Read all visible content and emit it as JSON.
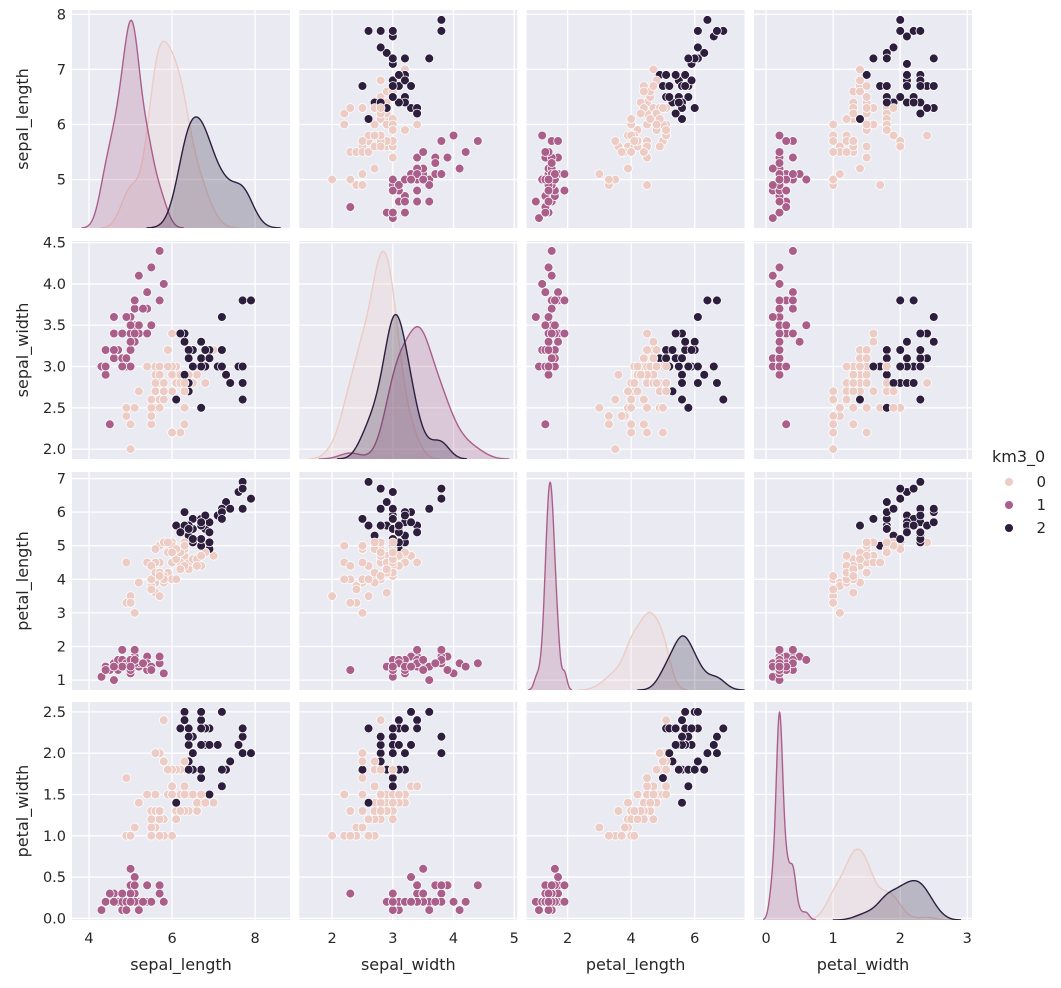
{
  "chart_data": {
    "type": "scatter",
    "kind": "pairplot",
    "diag_kind": "kde",
    "grid": true,
    "legend_placement": "right",
    "background": "#eaeaf2",
    "variables": [
      "sepal_length",
      "sepal_width",
      "petal_length",
      "petal_width"
    ],
    "hue": {
      "title": "km3_0",
      "levels": [
        "0",
        "1",
        "2"
      ],
      "colors": [
        "#ecccc5",
        "#aa5f8b",
        "#2d1e3e"
      ]
    },
    "axes": {
      "sepal_length": {
        "label": "sepal_length",
        "xlim": [
          3.59,
          8.84
        ],
        "ylim": [
          4.12,
          8.08
        ],
        "ticks": [
          4,
          5,
          6,
          7,
          8
        ],
        "x_tick_labels": [
          "4",
          "6",
          "8"
        ],
        "x_ticks": [
          4,
          6,
          8
        ],
        "y_ticks": [
          5,
          6,
          7,
          8
        ],
        "y_tick_labels": [
          "5",
          "6",
          "7",
          "8"
        ]
      },
      "sepal_width": {
        "label": "sepal_width",
        "xlim": [
          1.46,
          5.05
        ],
        "ylim": [
          1.88,
          4.52
        ],
        "x_ticks": [
          2,
          3,
          4,
          5
        ],
        "x_tick_labels": [
          "2",
          "3",
          "4",
          "5"
        ],
        "y_ticks": [
          2.0,
          2.5,
          3.0,
          3.5,
          4.0,
          4.5
        ],
        "y_tick_labels": [
          "2.0",
          "2.5",
          "3.0",
          "3.5",
          "4.0",
          "4.5"
        ]
      },
      "petal_length": {
        "label": "petal_length",
        "xlim": [
          0.71,
          7.57
        ],
        "ylim": [
          0.705,
          7.195
        ],
        "x_ticks": [
          2,
          4,
          6
        ],
        "x_tick_labels": [
          "2",
          "4",
          "6"
        ],
        "y_ticks": [
          1,
          2,
          3,
          4,
          5,
          6,
          7
        ],
        "y_tick_labels": [
          "1",
          "2",
          "3",
          "4",
          "5",
          "6",
          "7"
        ]
      },
      "petal_width": {
        "label": "petal_width",
        "xlim": [
          -0.18,
          3.07
        ],
        "ylim": [
          -0.02,
          2.62
        ],
        "x_ticks": [
          0,
          1,
          2,
          3
        ],
        "x_tick_labels": [
          "0",
          "1",
          "2",
          "3"
        ],
        "y_ticks": [
          0.0,
          0.5,
          1.0,
          1.5,
          2.0,
          2.5
        ],
        "y_tick_labels": [
          "0.0",
          "0.5",
          "1.0",
          "1.5",
          "2.0",
          "2.5"
        ]
      }
    },
    "data": {
      "sepal_length": [
        5.1,
        4.9,
        4.7,
        4.6,
        5.0,
        5.4,
        4.6,
        5.0,
        4.4,
        4.9,
        5.4,
        4.8,
        4.8,
        4.3,
        5.8,
        5.7,
        5.4,
        5.1,
        5.7,
        5.1,
        5.4,
        5.1,
        4.6,
        5.1,
        4.8,
        5.0,
        5.0,
        5.2,
        5.2,
        4.7,
        4.8,
        5.4,
        5.2,
        5.5,
        4.9,
        5.0,
        5.5,
        4.9,
        4.4,
        5.1,
        5.0,
        4.5,
        4.4,
        5.0,
        5.1,
        4.8,
        5.1,
        4.6,
        5.3,
        5.0,
        7.0,
        6.4,
        6.9,
        5.5,
        6.5,
        5.7,
        6.3,
        4.9,
        6.6,
        5.2,
        5.0,
        5.9,
        6.0,
        6.1,
        5.6,
        6.7,
        5.6,
        5.8,
        6.2,
        5.6,
        5.9,
        6.1,
        6.3,
        6.1,
        6.4,
        6.6,
        6.8,
        6.7,
        6.0,
        5.7,
        5.5,
        5.5,
        5.8,
        6.0,
        5.4,
        6.0,
        6.7,
        6.3,
        5.6,
        5.5,
        5.5,
        6.1,
        5.8,
        5.0,
        5.6,
        5.7,
        5.7,
        6.2,
        5.1,
        5.7,
        6.3,
        5.8,
        7.1,
        6.3,
        6.5,
        7.6,
        4.9,
        7.3,
        6.7,
        7.2,
        6.5,
        6.4,
        6.8,
        5.7,
        5.8,
        6.4,
        6.5,
        7.7,
        7.7,
        6.0,
        6.9,
        5.6,
        7.7,
        6.3,
        6.7,
        7.2,
        6.2,
        6.1,
        6.4,
        7.2,
        7.4,
        7.9,
        6.4,
        6.3,
        6.1,
        7.7,
        6.3,
        6.4,
        6.0,
        6.9,
        6.7,
        6.9,
        5.8,
        6.8,
        6.7,
        6.7,
        6.3,
        6.5,
        6.2,
        5.9
      ],
      "sepal_width": [
        3.5,
        3.0,
        3.2,
        3.1,
        3.6,
        3.9,
        3.4,
        3.4,
        2.9,
        3.1,
        3.7,
        3.4,
        3.0,
        3.0,
        4.0,
        4.4,
        3.9,
        3.5,
        3.8,
        3.8,
        3.4,
        3.7,
        3.6,
        3.3,
        3.4,
        3.0,
        3.4,
        3.5,
        3.4,
        3.2,
        3.1,
        3.4,
        4.1,
        4.2,
        3.1,
        3.2,
        3.5,
        3.6,
        3.0,
        3.4,
        3.5,
        2.3,
        3.2,
        3.5,
        3.8,
        3.0,
        3.8,
        3.2,
        3.7,
        3.3,
        3.2,
        3.2,
        3.1,
        2.3,
        2.8,
        2.8,
        3.3,
        2.4,
        2.9,
        2.7,
        2.0,
        3.0,
        2.2,
        2.9,
        2.9,
        3.1,
        3.0,
        2.7,
        2.2,
        2.5,
        3.2,
        2.8,
        2.5,
        2.8,
        2.9,
        3.0,
        2.8,
        3.0,
        2.9,
        2.6,
        2.4,
        2.4,
        2.7,
        2.7,
        3.0,
        3.4,
        3.1,
        2.3,
        3.0,
        2.5,
        2.6,
        3.0,
        2.6,
        2.3,
        2.7,
        3.0,
        2.9,
        2.9,
        2.5,
        2.8,
        3.3,
        2.7,
        3.0,
        2.9,
        3.0,
        3.0,
        2.5,
        2.9,
        2.5,
        3.6,
        3.2,
        2.7,
        3.0,
        2.5,
        2.8,
        3.2,
        3.0,
        3.8,
        2.6,
        2.2,
        3.2,
        2.8,
        2.8,
        2.7,
        3.3,
        3.2,
        2.8,
        3.0,
        2.8,
        3.0,
        2.8,
        3.8,
        2.8,
        2.8,
        2.6,
        3.0,
        3.4,
        3.1,
        3.0,
        3.1,
        3.1,
        3.1,
        2.7,
        3.2,
        3.3,
        3.0,
        2.5,
        3.0,
        3.4,
        3.0
      ],
      "petal_length": [
        1.4,
        1.4,
        1.3,
        1.5,
        1.4,
        1.7,
        1.4,
        1.5,
        1.4,
        1.5,
        1.5,
        1.6,
        1.4,
        1.1,
        1.2,
        1.5,
        1.3,
        1.4,
        1.7,
        1.5,
        1.7,
        1.5,
        1.0,
        1.7,
        1.9,
        1.6,
        1.6,
        1.5,
        1.4,
        1.6,
        1.6,
        1.5,
        1.5,
        1.4,
        1.5,
        1.2,
        1.3,
        1.4,
        1.3,
        1.5,
        1.3,
        1.3,
        1.3,
        1.6,
        1.9,
        1.4,
        1.6,
        1.4,
        1.5,
        1.4,
        4.7,
        4.5,
        4.9,
        4.0,
        4.6,
        4.5,
        4.7,
        3.3,
        4.6,
        3.9,
        3.5,
        4.2,
        4.0,
        4.7,
        3.6,
        4.4,
        4.5,
        4.1,
        4.5,
        3.9,
        4.8,
        4.0,
        4.9,
        4.7,
        4.3,
        4.4,
        4.8,
        5.0,
        4.5,
        3.5,
        3.8,
        3.7,
        3.9,
        5.1,
        4.5,
        4.5,
        4.7,
        4.4,
        4.1,
        4.0,
        4.4,
        4.6,
        4.0,
        3.3,
        4.2,
        4.2,
        4.2,
        4.3,
        3.0,
        4.1,
        6.0,
        5.1,
        5.9,
        5.6,
        5.8,
        6.6,
        4.5,
        6.3,
        5.8,
        6.1,
        5.1,
        5.3,
        5.5,
        5.0,
        5.1,
        5.3,
        5.5,
        6.7,
        6.9,
        5.0,
        5.7,
        4.9,
        6.7,
        4.9,
        5.7,
        6.0,
        4.8,
        4.9,
        5.6,
        5.8,
        6.1,
        6.4,
        5.6,
        5.1,
        5.6,
        6.1,
        5.6,
        5.5,
        4.8,
        5.4,
        5.6,
        5.1,
        5.1,
        5.9,
        5.7,
        5.2,
        5.0,
        5.2,
        5.4,
        5.1
      ],
      "petal_width": [
        0.2,
        0.2,
        0.2,
        0.2,
        0.2,
        0.4,
        0.3,
        0.2,
        0.2,
        0.1,
        0.2,
        0.2,
        0.1,
        0.1,
        0.2,
        0.4,
        0.4,
        0.3,
        0.3,
        0.3,
        0.2,
        0.4,
        0.2,
        0.5,
        0.2,
        0.2,
        0.4,
        0.2,
        0.2,
        0.2,
        0.2,
        0.4,
        0.1,
        0.2,
        0.2,
        0.2,
        0.2,
        0.1,
        0.2,
        0.2,
        0.3,
        0.3,
        0.2,
        0.6,
        0.4,
        0.3,
        0.2,
        0.2,
        0.2,
        0.2,
        1.4,
        1.5,
        1.5,
        1.3,
        1.5,
        1.3,
        1.6,
        1.0,
        1.3,
        1.4,
        1.0,
        1.5,
        1.0,
        1.4,
        1.3,
        1.4,
        1.5,
        1.0,
        1.5,
        1.1,
        1.8,
        1.3,
        1.5,
        1.2,
        1.3,
        1.4,
        1.4,
        1.7,
        1.5,
        1.0,
        1.1,
        1.0,
        1.2,
        1.6,
        1.5,
        1.6,
        1.5,
        1.3,
        1.3,
        1.3,
        1.2,
        1.4,
        1.2,
        1.0,
        1.3,
        1.2,
        1.3,
        1.3,
        1.1,
        1.3,
        2.5,
        1.9,
        2.1,
        1.8,
        2.2,
        2.1,
        1.7,
        1.8,
        1.8,
        2.5,
        2.0,
        1.9,
        2.1,
        2.0,
        2.4,
        2.3,
        1.8,
        2.2,
        2.3,
        1.5,
        2.3,
        2.0,
        2.0,
        1.8,
        2.1,
        1.8,
        1.8,
        1.8,
        2.1,
        1.6,
        1.9,
        2.0,
        2.2,
        1.5,
        1.4,
        2.3,
        2.4,
        1.8,
        1.8,
        2.1,
        2.4,
        2.3,
        1.9,
        2.3,
        2.5,
        2.3,
        1.9,
        2.0,
        2.3,
        1.8
      ],
      "km3_0": [
        1,
        1,
        1,
        1,
        1,
        1,
        1,
        1,
        1,
        1,
        1,
        1,
        1,
        1,
        1,
        1,
        1,
        1,
        1,
        1,
        1,
        1,
        1,
        1,
        1,
        1,
        1,
        1,
        1,
        1,
        1,
        1,
        1,
        1,
        1,
        1,
        1,
        1,
        1,
        1,
        1,
        1,
        1,
        1,
        1,
        1,
        1,
        1,
        1,
        1,
        0,
        0,
        2,
        0,
        0,
        0,
        0,
        0,
        0,
        0,
        0,
        0,
        0,
        0,
        0,
        0,
        0,
        0,
        0,
        0,
        0,
        0,
        0,
        0,
        0,
        0,
        0,
        2,
        0,
        0,
        0,
        0,
        0,
        0,
        0,
        0,
        0,
        0,
        0,
        0,
        0,
        0,
        0,
        0,
        0,
        0,
        0,
        0,
        0,
        0,
        2,
        0,
        2,
        2,
        2,
        2,
        0,
        2,
        2,
        2,
        2,
        2,
        2,
        0,
        0,
        2,
        2,
        2,
        2,
        0,
        2,
        0,
        2,
        0,
        2,
        2,
        0,
        0,
        2,
        2,
        2,
        2,
        2,
        0,
        2,
        2,
        2,
        2,
        0,
        2,
        2,
        2,
        0,
        2,
        2,
        2,
        0,
        2,
        2,
        0
      ]
    }
  }
}
